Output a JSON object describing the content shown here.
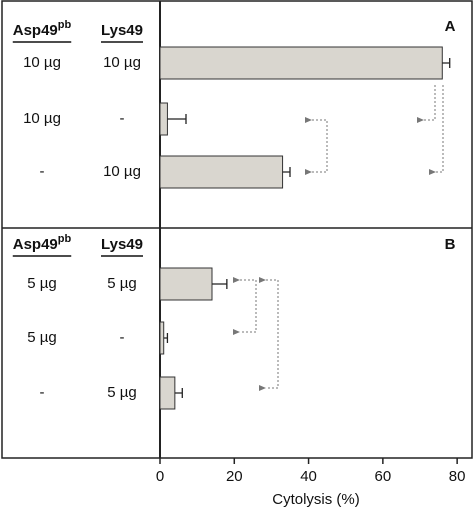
{
  "chart_data": [
    {
      "type": "bar",
      "panel": "A",
      "columns": [
        {
          "label": "Asp49",
          "sup": "pb"
        },
        {
          "label": "Lys49"
        }
      ],
      "rows": [
        [
          "10 µg",
          "10 µg"
        ],
        [
          "10 µg",
          "-"
        ],
        [
          "-",
          "10 µg"
        ]
      ],
      "values": [
        76,
        2,
        33
      ],
      "errors": [
        2,
        5,
        2
      ],
      "color": "#d9d6cf",
      "xlim": [
        0,
        84
      ]
    },
    {
      "type": "bar",
      "panel": "B",
      "columns": [
        {
          "label": "Asp49",
          "sup": "pb"
        },
        {
          "label": "Lys49"
        }
      ],
      "rows": [
        [
          "5 µg",
          "5 µg"
        ],
        [
          "5 µg",
          "-"
        ],
        [
          "-",
          "5 µg"
        ]
      ],
      "values": [
        14,
        1,
        4
      ],
      "errors": [
        4,
        1,
        2
      ],
      "color": "#d9d6cf",
      "xlim": [
        0,
        84
      ],
      "xticks": [
        0,
        20,
        40,
        60,
        80
      ],
      "x_label": "Cytolysis (%)"
    }
  ]
}
